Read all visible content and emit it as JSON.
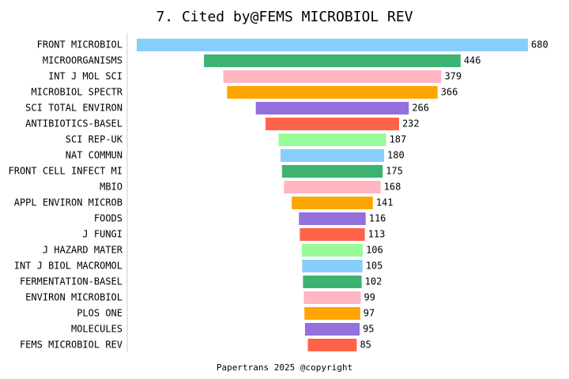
{
  "chart_data": {
    "type": "bar",
    "orientation": "horizontal",
    "layout": "centered",
    "title": "7. Cited by@FEMS MICROBIOL REV",
    "footer": "Papertrans 2025 @copyright",
    "categories": [
      "FRONT MICROBIOL",
      "MICROORGANISMS",
      "INT J MOL SCI",
      "MICROBIOL SPECTR",
      "SCI TOTAL ENVIRON",
      "ANTIBIOTICS-BASEL",
      "SCI REP-UK",
      "NAT COMMUN",
      "FRONT CELL INFECT MI",
      "MBIO",
      "APPL ENVIRON MICROB",
      "FOODS",
      "J FUNGI",
      "J HAZARD MATER",
      "INT J BIOL MACROMOL",
      "FERMENTATION-BASEL",
      "ENVIRON MICROBIOL",
      "PLOS ONE",
      "MOLECULES",
      "FEMS MICROBIOL REV"
    ],
    "values": [
      680,
      446,
      379,
      366,
      266,
      232,
      187,
      180,
      175,
      168,
      141,
      116,
      113,
      106,
      105,
      102,
      99,
      97,
      95,
      85
    ],
    "colors": [
      "#87CEFA",
      "#3CB371",
      "#FFB6C1",
      "#FFA500",
      "#9370DB",
      "#FF6347",
      "#98FB98"
    ]
  }
}
